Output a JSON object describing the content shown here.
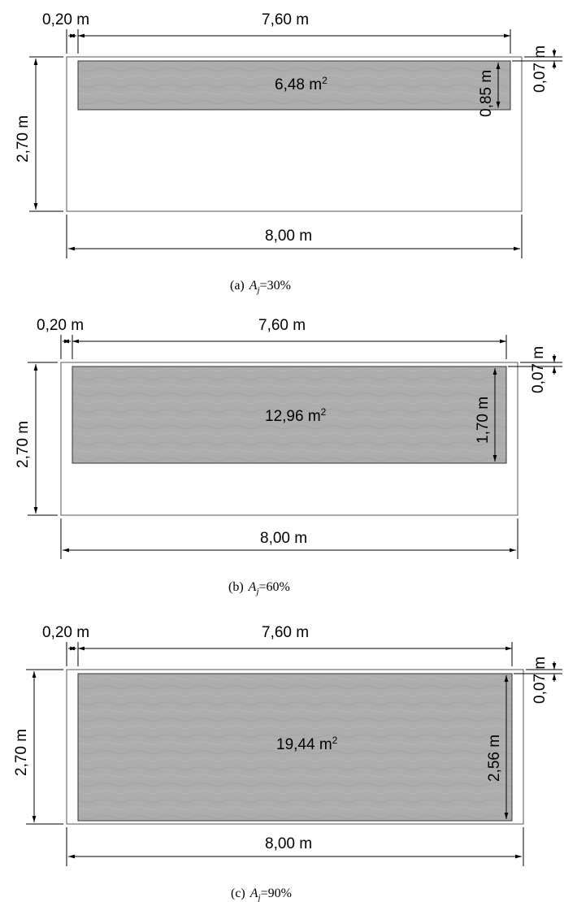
{
  "panels": [
    {
      "caption_prefix": "(a)",
      "caption_value": "=30%",
      "area": "6,48 m",
      "height_label": "0,85 m",
      "top_gap": "0,20 m",
      "window_width": "7,60 m",
      "top_offset": "0,07 m",
      "wall_height": "2,70 m",
      "wall_width": "8,00 m"
    },
    {
      "caption_prefix": "(b)",
      "caption_value": "=60%",
      "area": "12,96 m",
      "height_label": "1,70 m",
      "top_gap": "0,20 m",
      "window_width": "7,60 m",
      "top_offset": "0,07 m",
      "wall_height": "2,70 m",
      "wall_width": "8,00 m"
    },
    {
      "caption_prefix": "(c)",
      "caption_value": "=90%",
      "area": "19,44 m",
      "height_label": "2,56 m",
      "top_gap": "0,20 m",
      "window_width": "7,60 m",
      "top_offset": "0,07 m",
      "wall_height": "2,70 m",
      "wall_width": "8,00 m"
    }
  ],
  "area_exponent": "2",
  "caption_symbol": "A",
  "caption_subscript": "j"
}
